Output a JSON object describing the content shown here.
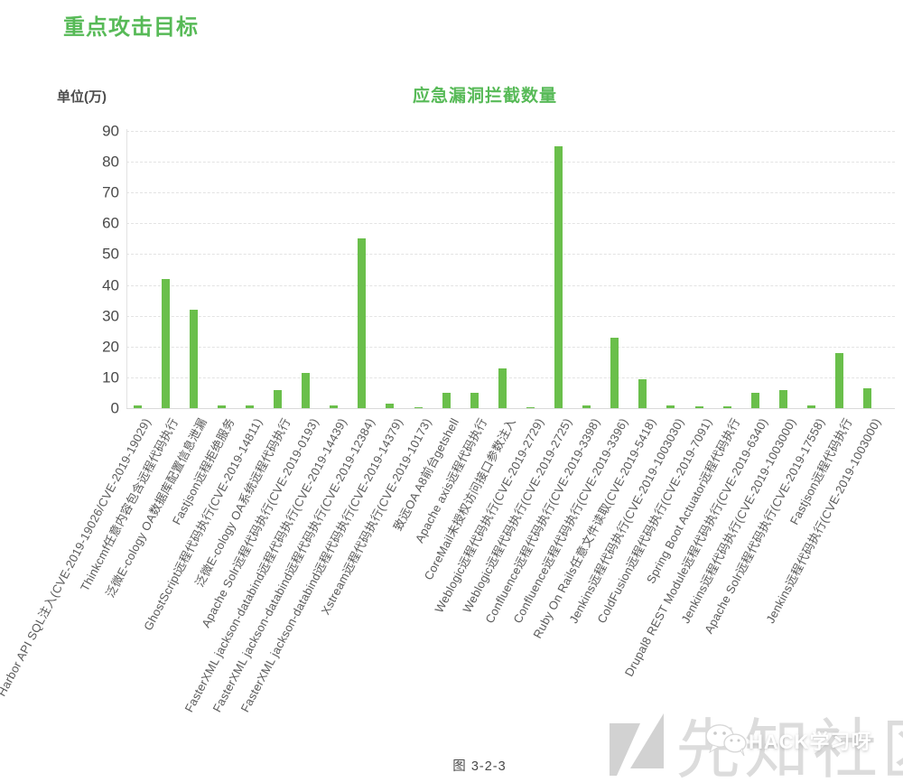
{
  "page": {
    "title": "重点攻击目标",
    "caption": "图 3-2-3"
  },
  "chart_data": {
    "type": "bar",
    "title": "应急漏洞拦截数量",
    "unit_label": "单位(万)",
    "ylabel": "",
    "xlabel": "",
    "ylim": [
      0,
      90
    ],
    "yticks": [
      0,
      10,
      20,
      30,
      40,
      50,
      60,
      70,
      80,
      90
    ],
    "grid": true,
    "grid_style": "dashed",
    "legend_position": "none",
    "bar_color": "#6abf4b",
    "categories": [
      "Harbor API SQL注入(CVE-2019-19026/CVE-2019-19029)",
      "Thinkcmf任意内容包含远程代码执行",
      "泛微E-cology OA数据库配置信息泄漏",
      "Fastjson远程拒绝服务",
      "GhostScript远程代码执行(CVE-2019-14811)",
      "泛微E-cology OA系统远程代码执行",
      "Apache Solr远程代码执行(CVE-2019-0193)",
      "FasterXML jackson-databind远程代码执行(CVE-2019-14439)",
      "FasterXML jackson-databind远程代码执行(CVE-2019-12384)",
      "FasterXML jackson-databind远程代码执行(CVE-2019-14379)",
      "Xstream远程代码执行(CVE-2019-10173)",
      "致远OA A8前台getshell",
      "Apache axis远程代码执行",
      "CoreMail未授权访问接口参数注入",
      "Weblogic远程代码执行(CVE-2019-2729)",
      "Weblogic远程代码执行(CVE-2019-2725)",
      "Confluence远程代码执行(CVE-2019-3398)",
      "Confluence远程代码执行(CVE-2019-3396)",
      "Ruby On Rails任意文件读取(CVE-2019-5418)",
      "Jenkins远程代码执行(CVE-2019-1003030)",
      "ColdFusion远程代码执行(CVE-2019-7091)",
      "Spring Boot Actuator远程代码执行",
      "Drupal8 REST Module远程代码执行(CVE-2019-6340)",
      "Jenkins远程代码执行(CVE-2019-1003000)",
      "Apache Solr远程代码执行(CVE-2019-17558)",
      "Fastjson远程代码执行",
      "Jenkins远程代码执行(CVE-2019-1003000)"
    ],
    "values": [
      1,
      42,
      32,
      1,
      1,
      6,
      11.5,
      1,
      55,
      1.5,
      0.4,
      5,
      5,
      13,
      0.4,
      85,
      1,
      23,
      9.5,
      1,
      0.7,
      0.7,
      5,
      6,
      1,
      18,
      6.5
    ]
  },
  "colors": {
    "accent_green": "#57ba57",
    "bar_green": "#6abf4b",
    "axis_text": "#4a4a4a",
    "category_text": "#595959",
    "grid_line": "#e3e3e3",
    "watermark_gray": "#dcdcdc"
  },
  "watermark": {
    "site_text": "先知社区",
    "overlay_text": "HACK学习呀",
    "icons": [
      "xianzhi-logo",
      "wechat-icon"
    ]
  }
}
